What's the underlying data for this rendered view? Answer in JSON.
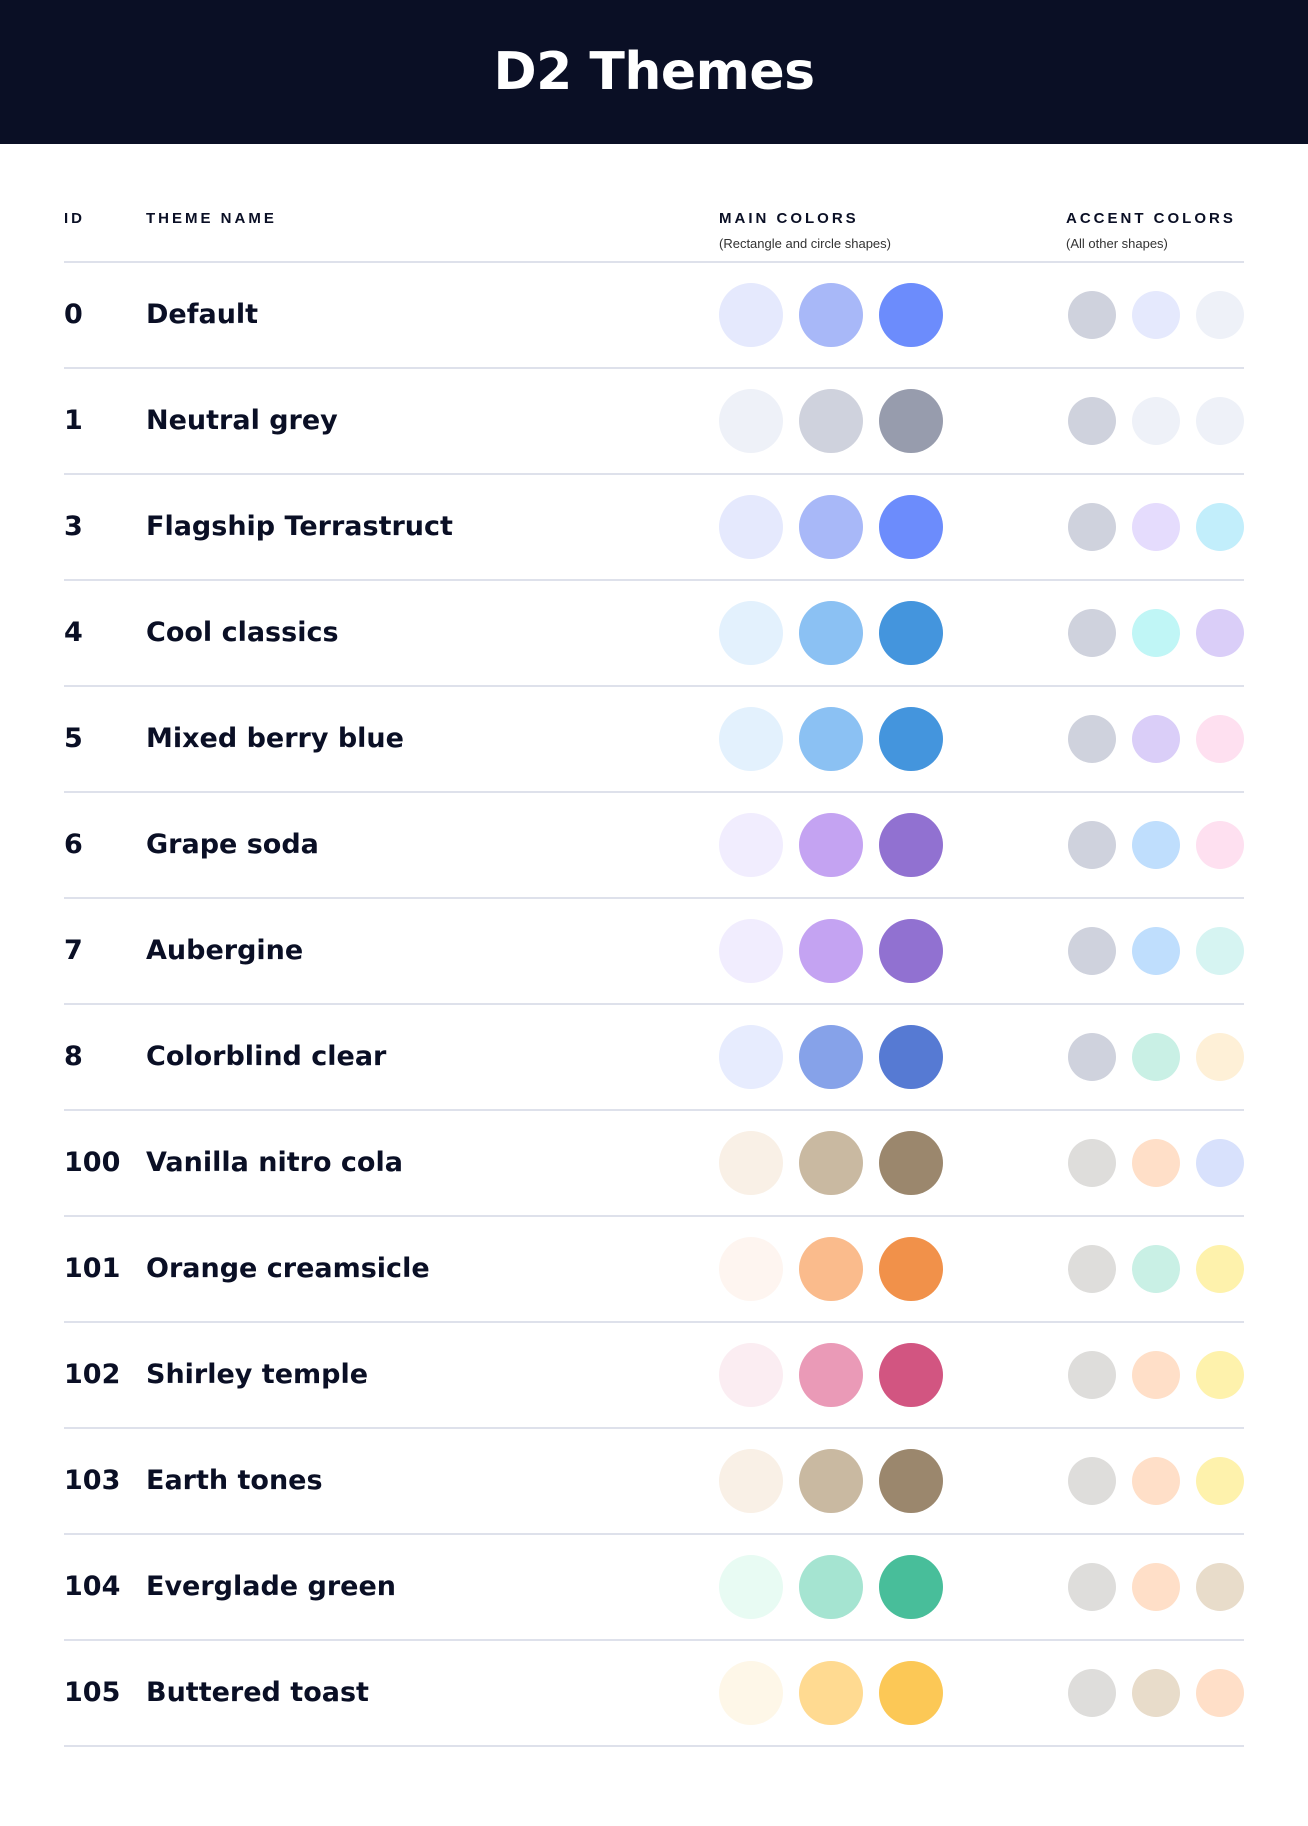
{
  "title": "D2 Themes",
  "columns": {
    "id": "ID",
    "name": "THEME NAME",
    "main": "MAIN COLORS",
    "main_sub": "(Rectangle and circle shapes)",
    "accent": "ACCENT COLORS",
    "accent_sub": "(All other shapes)"
  },
  "themes": [
    {
      "id": "0",
      "name": "Default",
      "main": [
        "#E5E9FD",
        "#A8B8F8",
        "#6C8CFC"
      ],
      "accent": [
        "#CFD2DD",
        "#E5E9FD",
        "#EEF1F8"
      ]
    },
    {
      "id": "1",
      "name": "Neutral grey",
      "main": [
        "#EEF1F8",
        "#CFD2DD",
        "#979CAD"
      ],
      "accent": [
        "#CFD2DD",
        "#EEF1F8",
        "#EEF1F8"
      ]
    },
    {
      "id": "3",
      "name": "Flagship Terrastruct",
      "main": [
        "#E5E9FD",
        "#A8B8F8",
        "#6C8CFC"
      ],
      "accent": [
        "#CFD2DD",
        "#E5DCFD",
        "#C2EEFB"
      ]
    },
    {
      "id": "4",
      "name": "Cool classics",
      "main": [
        "#E3F1FD",
        "#8BC1F3",
        "#4495DD"
      ],
      "accent": [
        "#CFD2DD",
        "#C0F6F6",
        "#DACEF8"
      ]
    },
    {
      "id": "5",
      "name": "Mixed berry blue",
      "main": [
        "#E3F1FD",
        "#8BC1F3",
        "#4495DD"
      ],
      "accent": [
        "#CFD2DD",
        "#DACEF8",
        "#FEE0F0"
      ]
    },
    {
      "id": "6",
      "name": "Grape soda",
      "main": [
        "#F1EDFE",
        "#C4A3F2",
        "#9171D1"
      ],
      "accent": [
        "#CFD2DD",
        "#BFDEFD",
        "#FEE0F0"
      ]
    },
    {
      "id": "7",
      "name": "Aubergine",
      "main": [
        "#F1EDFE",
        "#C4A3F2",
        "#9171D1"
      ],
      "accent": [
        "#CFD2DD",
        "#BFDEFD",
        "#D6F4F2"
      ]
    },
    {
      "id": "8",
      "name": "Colorblind clear",
      "main": [
        "#E7ECFE",
        "#86A2E9",
        "#567AD3"
      ],
      "accent": [
        "#CFD2DD",
        "#C9F0E5",
        "#FEF0D7"
      ]
    },
    {
      "id": "100",
      "name": "Vanilla nitro cola",
      "main": [
        "#F9F0E6",
        "#C9B9A1",
        "#9B876D"
      ],
      "accent": [
        "#DEDDDB",
        "#FFDFC8",
        "#D8E1FC"
      ]
    },
    {
      "id": "101",
      "name": "Orange creamsicle",
      "main": [
        "#FEF5F0",
        "#FABB8C",
        "#F1914A"
      ],
      "accent": [
        "#DEDDDB",
        "#C9F0E5",
        "#FEF2AC"
      ]
    },
    {
      "id": "102",
      "name": "Shirley temple",
      "main": [
        "#FBEDF2",
        "#EA9AB7",
        "#D25581"
      ],
      "accent": [
        "#DEDDDB",
        "#FFDFC8",
        "#FEF2AC"
      ]
    },
    {
      "id": "103",
      "name": "Earth tones",
      "main": [
        "#F9F0E6",
        "#C9B9A1",
        "#9B876D"
      ],
      "accent": [
        "#DEDDDB",
        "#FFDFC8",
        "#FEF2AC"
      ]
    },
    {
      "id": "104",
      "name": "Everglade green",
      "main": [
        "#E8FBF3",
        "#A5E4D1",
        "#48BE9A"
      ],
      "accent": [
        "#DEDDDB",
        "#FFDFC8",
        "#E8DCCA"
      ]
    },
    {
      "id": "105",
      "name": "Buttered toast",
      "main": [
        "#FEF7E8",
        "#FFDA91",
        "#FCC856"
      ],
      "accent": [
        "#DEDDDB",
        "#E8DCCA",
        "#FFDFC8"
      ]
    }
  ]
}
